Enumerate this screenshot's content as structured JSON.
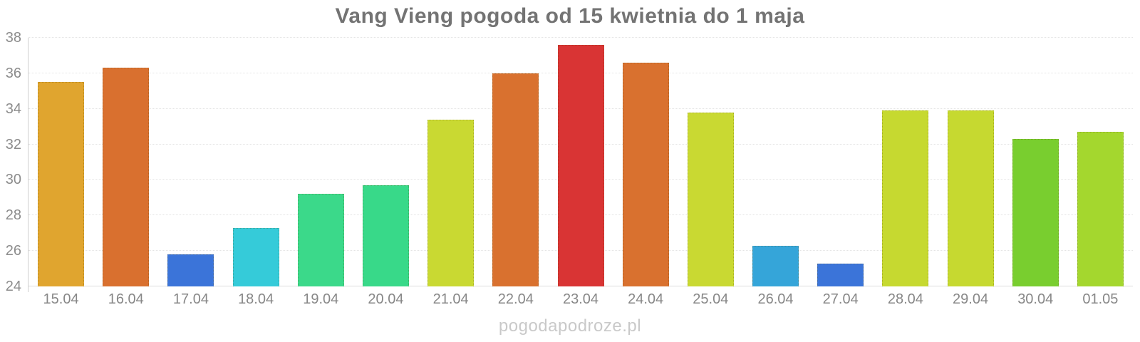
{
  "title": "Vang Vieng pogoda od 15 kwietnia do 1 maja",
  "watermark": "pogodapodroze.pl",
  "chart_data": {
    "type": "bar",
    "title": "Vang Vieng pogoda od 15 kwietnia do 1 maja",
    "xlabel": "",
    "ylabel": "",
    "ylim": [
      24,
      38
    ],
    "yticks": [
      24,
      26,
      28,
      30,
      32,
      34,
      36,
      38
    ],
    "grid": true,
    "legend_position": "none",
    "categories": [
      "15.04",
      "16.04",
      "17.04",
      "18.04",
      "19.04",
      "20.04",
      "21.04",
      "22.04",
      "23.04",
      "24.04",
      "25.04",
      "26.04",
      "27.04",
      "28.04",
      "29.04",
      "30.04",
      "01.05"
    ],
    "values": [
      35.5,
      36.3,
      25.8,
      27.3,
      29.2,
      29.7,
      33.4,
      36.0,
      37.6,
      36.6,
      33.8,
      26.3,
      25.3,
      33.9,
      33.9,
      32.3,
      32.7
    ],
    "bar_colors": [
      "#e0a52f",
      "#d9702f",
      "#3b74d9",
      "#35cbd9",
      "#3bd98a",
      "#38d989",
      "#c9d932",
      "#d9712f",
      "#d93434",
      "#d9712f",
      "#c9d932",
      "#35a5d9",
      "#3b74d9",
      "#c6d930",
      "#c6d930",
      "#79ce2f",
      "#a4d72e"
    ]
  }
}
